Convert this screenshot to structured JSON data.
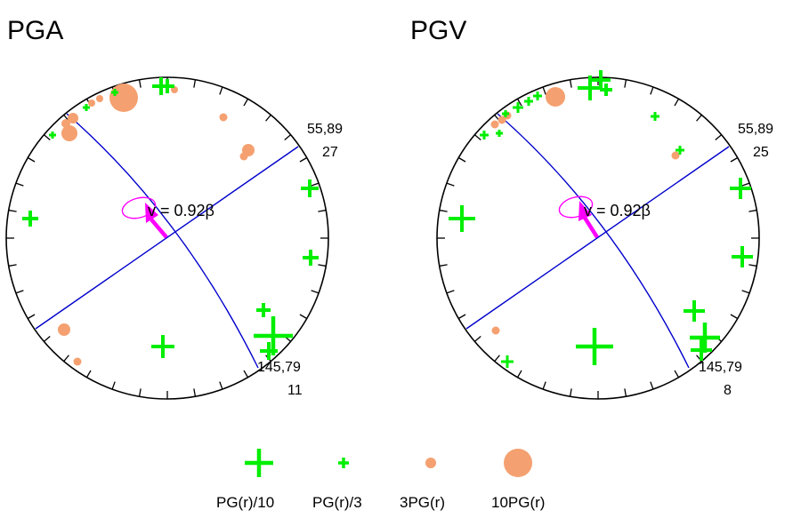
{
  "colors": {
    "plus": "#00ee00",
    "dot": "#f5a070",
    "plane": "#0000cc",
    "arrow": "#ff00ff",
    "frame": "#000000"
  },
  "panels": [
    {
      "title": "PGA",
      "plane1_label": "55,89",
      "plane1_count": "27",
      "plane2_label": "145,79",
      "plane2_count": "11",
      "velocity_label": "v = 0.92β"
    },
    {
      "title": "PGV",
      "plane1_label": "55,89",
      "plane1_count": "25",
      "plane2_label": "145,79",
      "plane2_count": "8",
      "velocity_label": "v = 0.92β"
    }
  ],
  "legend": {
    "items": [
      {
        "label": "PG(r)/10",
        "symbol": "plus-large"
      },
      {
        "label": "PG(r)/3",
        "symbol": "plus-small"
      },
      {
        "label": "3PG(r)",
        "symbol": "dot-small"
      },
      {
        "label": "10PG(r)",
        "symbol": "dot-large"
      }
    ]
  }
}
